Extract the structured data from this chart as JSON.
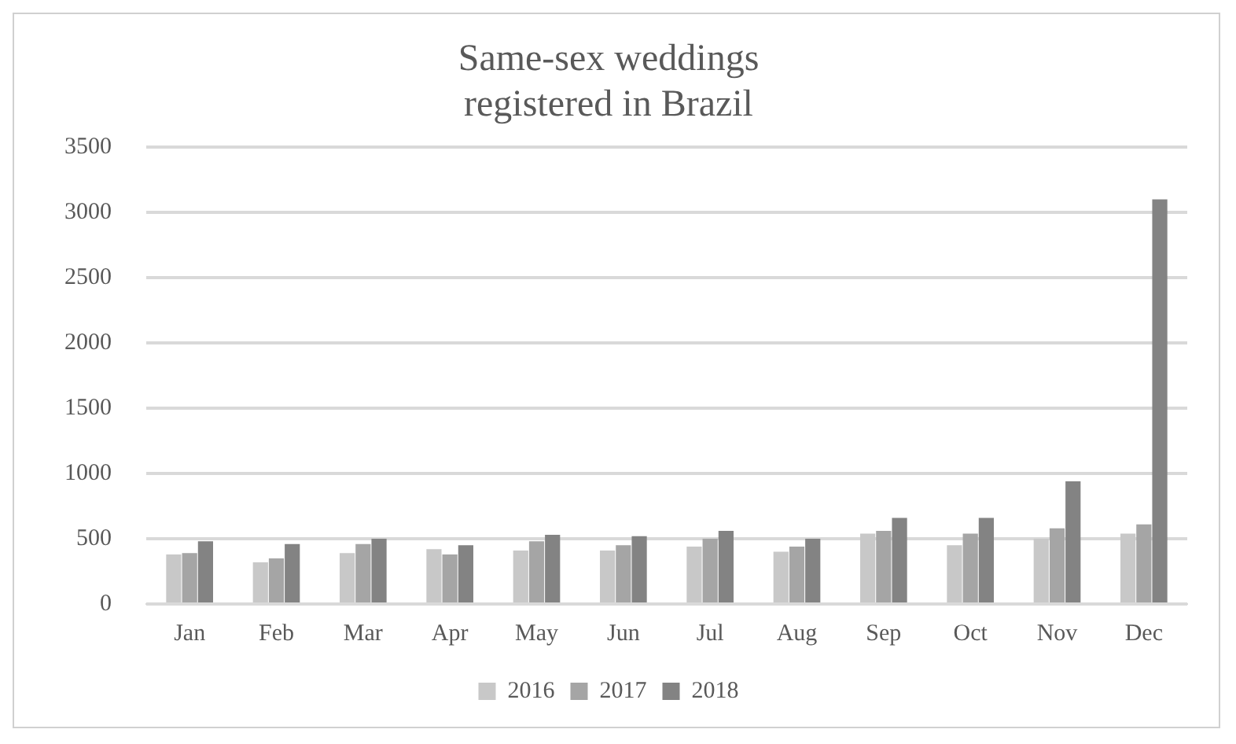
{
  "chart_data": {
    "type": "bar",
    "title": [
      "Same-sex weddings",
      "registered in Brazil"
    ],
    "categories": [
      "Jan",
      "Feb",
      "Mar",
      "Apr",
      "May",
      "Jun",
      "Jul",
      "Aug",
      "Sep",
      "Oct",
      "Nov",
      "Dec"
    ],
    "series": [
      {
        "name": "2016",
        "color": "#c8c8c8",
        "values": [
          380,
          320,
          390,
          420,
          410,
          410,
          440,
          400,
          540,
          450,
          500,
          540
        ]
      },
      {
        "name": "2017",
        "color": "#a5a5a5",
        "values": [
          390,
          350,
          460,
          380,
          480,
          450,
          500,
          440,
          560,
          540,
          580,
          610
        ]
      },
      {
        "name": "2018",
        "color": "#838383",
        "values": [
          480,
          460,
          500,
          450,
          530,
          520,
          560,
          500,
          660,
          660,
          940,
          3100
        ]
      }
    ],
    "ylim": [
      0,
      3500
    ],
    "yticks": [
      0,
      500,
      1000,
      1500,
      2000,
      2500,
      3000,
      3500
    ],
    "grid": "y",
    "legend": "bottom"
  }
}
